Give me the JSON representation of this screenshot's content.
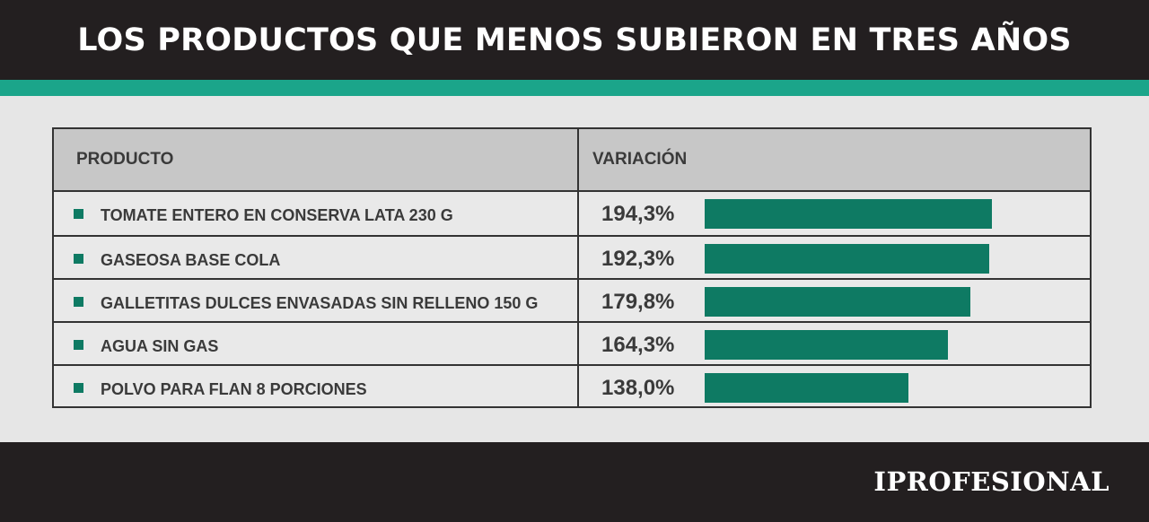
{
  "header": {
    "title": "LOS PRODUCTOS QUE MENOS SUBIERON EN TRES AÑOS"
  },
  "table": {
    "col_product": "PRODUCTO",
    "col_variation": "VARIACIÓN"
  },
  "footer": {
    "logo": "IPROFESIONAL"
  },
  "colors": {
    "bar": "#0e7a63",
    "accent_stripe": "#1ba58a",
    "header_bg": "#231f20"
  },
  "chart_data": {
    "type": "bar",
    "title": "LOS PRODUCTOS QUE MENOS SUBIERON EN TRES AÑOS",
    "categories": [
      "TOMATE ENTERO EN CONSERVA LATA 230 G",
      "GASEOSA BASE COLA",
      "GALLETITAS DULCES ENVASADAS SIN RELLENO 150 G",
      "AGUA SIN GAS",
      "POLVO PARA FLAN 8 PORCIONES"
    ],
    "values": [
      194.3,
      192.3,
      179.8,
      164.3,
      138.0
    ],
    "value_labels": [
      "194,3%",
      "192,3%",
      "179,8%",
      "164,3%",
      "138,0%"
    ],
    "orientation": "horizontal",
    "grid": false
  }
}
